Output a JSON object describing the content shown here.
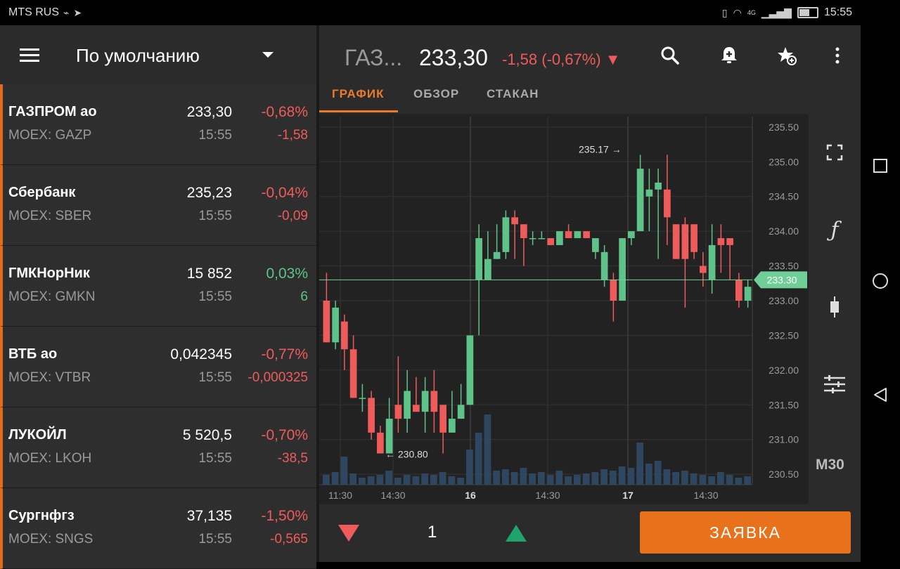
{
  "status_bar": {
    "carrier": "MTS RUS",
    "time": "15:55",
    "network": "4G"
  },
  "watchlist": {
    "title": "По умолчанию",
    "items": [
      {
        "name": "ГАЗПРОМ ао",
        "ticker": "MOEX: GAZP",
        "price": "233,30",
        "time": "15:55",
        "pct": "-0,68%",
        "change": "-1,58",
        "dir": "neg"
      },
      {
        "name": "Сбербанк",
        "ticker": "MOEX: SBER",
        "price": "235,23",
        "time": "15:55",
        "pct": "-0,04%",
        "change": "-0,09",
        "dir": "neg"
      },
      {
        "name": "ГМКНорНик",
        "ticker": "MOEX: GMKN",
        "price": "15 852",
        "time": "15:55",
        "pct": "0,03%",
        "change": "6",
        "dir": "pos"
      },
      {
        "name": "ВТБ ао",
        "ticker": "MOEX: VTBR",
        "price": "0,042345",
        "time": "15:55",
        "pct": "-0,77%",
        "change": "-0,000325",
        "dir": "neg"
      },
      {
        "name": "ЛУКОЙЛ",
        "ticker": "MOEX: LKOH",
        "price": "5 520,5",
        "time": "15:55",
        "pct": "-0,70%",
        "change": "-38,5",
        "dir": "neg"
      },
      {
        "name": "Сургнфгз",
        "ticker": "MOEX: SNGS",
        "price": "37,135",
        "time": "15:55",
        "pct": "-1,50%",
        "change": "-0,565",
        "dir": "neg"
      }
    ]
  },
  "instrument": {
    "ticker": "ГАЗ...",
    "price": "233,30",
    "change": "-1,58 (-0,67%) ▼"
  },
  "tabs": [
    "ГРАФИК",
    "ОБЗОР",
    "СТАКАН"
  ],
  "chart": {
    "timeframe": "M30",
    "current_price_label": "233.30",
    "high_annotation": "235.17 →",
    "low_annotation": "← 230.80",
    "y_ticks": [
      "235.50",
      "235.00",
      "234.50",
      "234.00",
      "233.50",
      "233.00",
      "232.50",
      "232.00",
      "231.50",
      "231.00",
      "230.50"
    ],
    "x_ticks": [
      "11:30",
      "14:30",
      "16",
      "14:30",
      "17",
      "14:30"
    ]
  },
  "order": {
    "quantity": "1",
    "button_label": "ЗАЯВКА"
  },
  "colors": {
    "accent": "#e8721c",
    "up": "#5fc389",
    "down": "#ee5b5b",
    "bg": "#2b2b2b"
  },
  "chart_data": {
    "type": "candlestick",
    "y_range": [
      230.35,
      235.65
    ],
    "y_ticks": [
      235.5,
      235.0,
      234.5,
      234.0,
      233.5,
      233.0,
      232.5,
      232.0,
      231.5,
      231.0,
      230.5
    ],
    "x_labels": [
      "11:30",
      "14:30",
      "16",
      "14:30",
      "17",
      "14:30"
    ],
    "current_price": 233.3,
    "annotations": [
      {
        "text": "235.17 →",
        "value": 235.17
      },
      {
        "text": "← 230.80",
        "value": 230.8
      }
    ],
    "candles": [
      [
        233.0,
        232.4,
        233.4,
        232.4
      ],
      [
        232.4,
        232.9,
        233.0,
        232.3
      ],
      [
        232.7,
        232.3,
        232.8,
        232.0
      ],
      [
        232.3,
        231.6,
        232.5,
        231.6
      ],
      [
        231.6,
        231.6,
        231.8,
        231.4
      ],
      [
        231.6,
        231.1,
        231.7,
        231.0
      ],
      [
        231.1,
        230.8,
        231.2,
        230.8
      ],
      [
        230.8,
        231.3,
        231.6,
        230.8
      ],
      [
        231.5,
        231.3,
        232.2,
        231.1
      ],
      [
        231.3,
        231.7,
        232.0,
        231.1
      ],
      [
        231.5,
        231.4,
        231.9,
        231.4
      ],
      [
        231.4,
        231.7,
        231.9,
        231.1
      ],
      [
        231.7,
        231.4,
        232.0,
        231.1
      ],
      [
        231.5,
        231.1,
        231.5,
        230.8
      ],
      [
        231.1,
        231.3,
        231.7,
        231.1
      ],
      [
        231.3,
        231.5,
        231.8,
        231.3
      ],
      [
        231.5,
        232.5,
        232.5,
        231.5
      ],
      [
        233.3,
        233.9,
        234.1,
        232.5
      ],
      [
        233.3,
        233.6,
        234.0,
        233.3
      ],
      [
        233.6,
        233.7,
        234.1,
        233.6
      ],
      [
        233.7,
        234.2,
        234.3,
        233.6
      ],
      [
        234.2,
        234.1,
        234.3,
        233.6
      ],
      [
        234.1,
        233.9,
        234.1,
        233.5
      ],
      [
        233.9,
        233.9,
        234.0,
        233.8
      ],
      [
        233.9,
        233.9,
        234.0,
        233.9
      ],
      [
        233.9,
        233.8,
        233.9,
        233.8
      ],
      [
        233.8,
        234.0,
        234.0,
        233.8
      ],
      [
        234.0,
        233.9,
        234.1,
        233.9
      ],
      [
        233.9,
        234.0,
        234.0,
        233.9
      ],
      [
        234.0,
        233.9,
        233.9,
        233.9
      ],
      [
        233.7,
        233.9,
        233.9,
        233.6
      ],
      [
        233.3,
        233.7,
        233.8,
        233.2
      ],
      [
        233.3,
        233.0,
        233.4,
        232.7
      ],
      [
        233.0,
        233.9,
        233.9,
        233.0
      ],
      [
        233.9,
        234.0,
        234.0,
        233.8
      ],
      [
        234.0,
        234.9,
        235.1,
        234.0
      ],
      [
        234.5,
        234.6,
        234.9,
        234.0
      ],
      [
        234.6,
        234.7,
        234.9,
        233.6
      ],
      [
        234.6,
        234.2,
        235.1,
        233.8
      ],
      [
        234.1,
        233.6,
        234.1,
        233.6
      ],
      [
        234.1,
        233.6,
        234.2,
        232.9
      ],
      [
        234.1,
        233.7,
        234.1,
        233.6
      ],
      [
        233.5,
        233.4,
        233.7,
        233.2
      ],
      [
        233.3,
        233.8,
        234.1,
        233.1
      ],
      [
        233.9,
        233.8,
        234.1,
        233.4
      ],
      [
        233.9,
        233.8,
        233.8,
        233.3
      ],
      [
        233.3,
        233.0,
        233.4,
        232.9
      ],
      [
        233.0,
        233.2,
        233.3,
        232.9
      ]
    ]
  }
}
